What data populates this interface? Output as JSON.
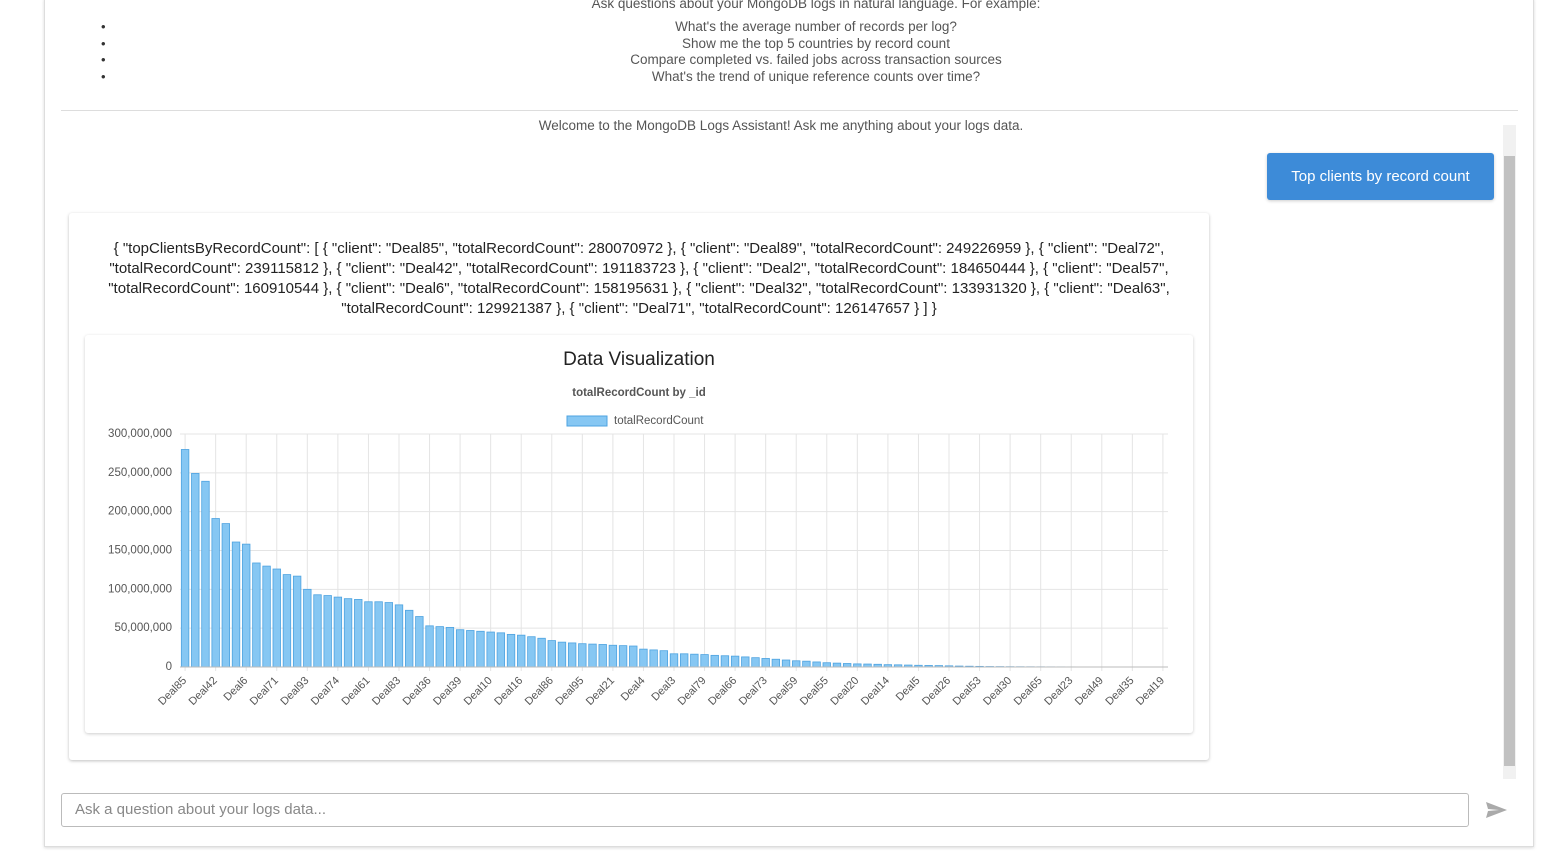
{
  "header": {
    "intro": "Ask questions about your MongoDB logs in natural language. For example:",
    "examples": [
      "What's the average number of records per log?",
      "Show me the top 5 countries by record count",
      "Compare completed vs. failed jobs across transaction sources",
      "What's the trend of unique reference counts over time?"
    ]
  },
  "chat": {
    "welcome": "Welcome to the MongoDB Logs Assistant! Ask me anything about your logs data.",
    "user_message": "Top clients by record count",
    "bot_message": "{ \"topClientsByRecordCount\": [ { \"client\": \"Deal85\", \"totalRecordCount\": 280070972 }, { \"client\": \"Deal89\", \"totalRecordCount\": 249226959 }, { \"client\": \"Deal72\", \"totalRecordCount\": 239115812 }, { \"client\": \"Deal42\", \"totalRecordCount\": 191183723 }, { \"client\": \"Deal2\", \"totalRecordCount\": 184650444 }, { \"client\": \"Deal57\", \"totalRecordCount\": 160910544 }, { \"client\": \"Deal6\", \"totalRecordCount\": 158195631 }, { \"client\": \"Deal32\", \"totalRecordCount\": 133931320 }, { \"client\": \"Deal63\", \"totalRecordCount\": 129921387 }, { \"client\": \"Deal71\", \"totalRecordCount\": 126147657 } ] }"
  },
  "chart_data": {
    "type": "bar",
    "title": "Data Visualization",
    "subtitle": "totalRecordCount by _id",
    "categories": [
      "Deal85",
      null,
      null,
      "Deal42",
      null,
      null,
      "Deal6",
      null,
      null,
      "Deal71",
      null,
      null,
      "Deal93",
      null,
      null,
      "Deal74",
      null,
      null,
      "Deal61",
      null,
      null,
      "Deal83",
      null,
      null,
      "Deal36",
      null,
      null,
      "Deal39",
      null,
      null,
      "Deal10",
      null,
      null,
      "Deal16",
      null,
      null,
      "Deal86",
      null,
      null,
      "Deal95",
      null,
      null,
      "Deal21",
      null,
      null,
      "Deal4",
      null,
      null,
      "Deal3",
      null,
      null,
      "Deal79",
      null,
      null,
      "Deal66",
      null,
      null,
      "Deal73",
      null,
      null,
      "Deal59",
      null,
      null,
      "Deal55",
      null,
      null,
      "Deal20",
      null,
      null,
      "Deal14",
      null,
      null,
      "Deal5",
      null,
      null,
      "Deal26",
      null,
      null,
      "Deal53",
      null,
      null,
      "Deal30",
      null,
      null,
      "Deal65",
      null,
      null,
      "Deal23",
      null,
      null,
      "Deal49",
      null,
      null,
      "Deal35",
      null,
      null,
      "Deal19"
    ],
    "series": [
      {
        "name": "totalRecordCount",
        "color": "#86c7f3",
        "values": [
          280070972,
          249226959,
          239115812,
          191183723,
          184650444,
          160910544,
          158195631,
          133931320,
          129921387,
          126147657,
          119000000,
          117000000,
          100000000,
          93000000,
          92000000,
          90000000,
          88000000,
          87000000,
          84000000,
          84000000,
          83000000,
          80000000,
          73000000,
          65000000,
          53000000,
          52000000,
          51000000,
          48000000,
          47000000,
          46000000,
          45000000,
          44000000,
          42000000,
          41000000,
          39000000,
          37000000,
          34000000,
          32000000,
          31000000,
          30000000,
          29500000,
          29000000,
          28000000,
          27500000,
          27000000,
          23000000,
          22000000,
          21000000,
          17000000,
          17000000,
          16500000,
          16000000,
          15000000,
          14500000,
          14000000,
          13000000,
          12000000,
          11000000,
          10000000,
          9000000,
          8000000,
          7500000,
          6500000,
          5500000,
          5000000,
          4500000,
          4000000,
          3800000,
          3500000,
          3000000,
          2800000,
          2500000,
          2200000,
          2000000,
          1800000,
          1500000,
          1200000,
          1000000,
          800000,
          600000,
          500000,
          400000,
          350000,
          300000,
          250000,
          200000,
          180000,
          150000,
          120000,
          100000,
          80000,
          60000,
          50000,
          40000,
          30000,
          20000,
          10000
        ]
      }
    ],
    "ylim": [
      0,
      300000000
    ],
    "yticks": [
      0,
      {
        "value": 50000000,
        "label": "50,000,000"
      },
      {
        "value": 100000000,
        "label": "100,000,000"
      },
      {
        "value": 150000000,
        "label": "150,000,000"
      },
      {
        "value": 200000000,
        "label": "200,000,000"
      },
      {
        "value": 250000000,
        "label": "250,000,000"
      },
      {
        "value": 300000000,
        "label": "300,000,000"
      }
    ],
    "grid": true
  },
  "input": {
    "placeholder": "Ask a question about your logs data..."
  }
}
